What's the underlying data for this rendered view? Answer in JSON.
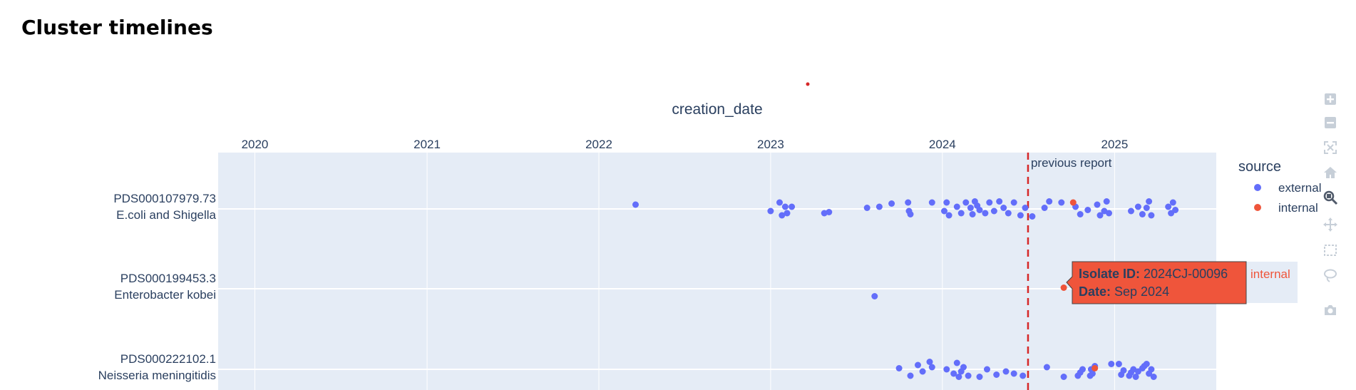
{
  "page": {
    "title": "Cluster timelines"
  },
  "chart_data": {
    "type": "scatter",
    "xlabel": "creation_date",
    "x_axis_side": "top",
    "xlim": [
      "2019-10-15",
      "2025-08-05"
    ],
    "x_ticks": [
      {
        "date": "2020-01-01",
        "label": "2020"
      },
      {
        "date": "2021-01-01",
        "label": "2021"
      },
      {
        "date": "2022-01-01",
        "label": "2022"
      },
      {
        "date": "2023-01-01",
        "label": "2023"
      },
      {
        "date": "2024-01-01",
        "label": "2024"
      },
      {
        "date": "2025-01-01",
        "label": "2025"
      }
    ],
    "categories": [
      {
        "id": "PDS000107979.73",
        "name": "E.coli and Shigella"
      },
      {
        "id": "PDS000199453.3",
        "name": "Enterobacter kobei"
      },
      {
        "id": "PDS000222102.1",
        "name": "Neisseria meningitidis"
      }
    ],
    "legend": {
      "title": "source",
      "placement": "right-top"
    },
    "colors": {
      "external": "#636efa",
      "internal": "#ef553b",
      "plot_bg": "#e5ecf6",
      "grid": "#ffffff",
      "report_line": "#d62728"
    },
    "annotations": [
      {
        "type": "vertical-line",
        "date": "2024-07-01",
        "label": "previous report",
        "style": "dashed"
      }
    ],
    "series": [
      {
        "name": "external",
        "points": [
          {
            "x": "2022-03-20",
            "c": 0,
            "j": 0.2
          },
          {
            "x": "2023-01-01",
            "c": 0,
            "j": -0.1
          },
          {
            "x": "2023-01-20",
            "c": 0,
            "j": 0.3
          },
          {
            "x": "2023-01-25",
            "c": 0,
            "j": -0.3
          },
          {
            "x": "2023-02-01",
            "c": 0,
            "j": 0.1
          },
          {
            "x": "2023-02-05",
            "c": 0,
            "j": -0.2
          },
          {
            "x": "2023-02-15",
            "c": 0,
            "j": 0.1
          },
          {
            "x": "2023-04-25",
            "c": 0,
            "j": -0.2
          },
          {
            "x": "2023-05-05",
            "c": 0,
            "j": -0.15
          },
          {
            "x": "2023-07-25",
            "c": 0,
            "j": 0.05
          },
          {
            "x": "2023-08-20",
            "c": 0,
            "j": 0.1
          },
          {
            "x": "2023-09-15",
            "c": 0,
            "j": 0.25
          },
          {
            "x": "2023-10-20",
            "c": 0,
            "j": 0.3
          },
          {
            "x": "2023-10-22",
            "c": 0,
            "j": -0.1
          },
          {
            "x": "2023-10-25",
            "c": 0,
            "j": -0.25
          },
          {
            "x": "2023-12-10",
            "c": 0,
            "j": 0.3
          },
          {
            "x": "2024-01-05",
            "c": 0,
            "j": -0.1
          },
          {
            "x": "2024-01-10",
            "c": 0,
            "j": 0.3
          },
          {
            "x": "2024-01-15",
            "c": 0,
            "j": -0.3
          },
          {
            "x": "2024-02-01",
            "c": 0,
            "j": 0.1
          },
          {
            "x": "2024-02-10",
            "c": 0,
            "j": -0.2
          },
          {
            "x": "2024-02-20",
            "c": 0,
            "j": 0.3
          },
          {
            "x": "2024-03-01",
            "c": 0,
            "j": 0.05
          },
          {
            "x": "2024-03-05",
            "c": 0,
            "j": -0.25
          },
          {
            "x": "2024-03-10",
            "c": 0,
            "j": 0.35
          },
          {
            "x": "2024-03-15",
            "c": 0,
            "j": 0.15
          },
          {
            "x": "2024-03-20",
            "c": 0,
            "j": -0.05
          },
          {
            "x": "2024-04-01",
            "c": 0,
            "j": -0.2
          },
          {
            "x": "2024-04-10",
            "c": 0,
            "j": 0.3
          },
          {
            "x": "2024-04-20",
            "c": 0,
            "j": -0.1
          },
          {
            "x": "2024-05-01",
            "c": 0,
            "j": 0.35
          },
          {
            "x": "2024-05-10",
            "c": 0,
            "j": 0.05
          },
          {
            "x": "2024-05-20",
            "c": 0,
            "j": -0.2
          },
          {
            "x": "2024-06-01",
            "c": 0,
            "j": 0.3
          },
          {
            "x": "2024-06-15",
            "c": 0,
            "j": -0.3
          },
          {
            "x": "2024-06-25",
            "c": 0,
            "j": 0.05
          },
          {
            "x": "2024-07-10",
            "c": 0,
            "j": -0.35
          },
          {
            "x": "2024-08-05",
            "c": 0,
            "j": 0.05
          },
          {
            "x": "2024-08-15",
            "c": 0,
            "j": 0.35
          },
          {
            "x": "2024-09-10",
            "c": 0,
            "j": 0.3
          },
          {
            "x": "2024-10-10",
            "c": 0,
            "j": 0.1
          },
          {
            "x": "2024-10-20",
            "c": 0,
            "j": -0.25
          },
          {
            "x": "2024-11-05",
            "c": 0,
            "j": -0.05
          },
          {
            "x": "2024-11-25",
            "c": 0,
            "j": 0.2
          },
          {
            "x": "2024-12-01",
            "c": 0,
            "j": -0.3
          },
          {
            "x": "2024-12-10",
            "c": 0,
            "j": -0.1
          },
          {
            "x": "2024-12-15",
            "c": 0,
            "j": 0.35
          },
          {
            "x": "2024-12-20",
            "c": 0,
            "j": -0.2
          },
          {
            "x": "2025-02-05",
            "c": 0,
            "j": -0.1
          },
          {
            "x": "2025-02-20",
            "c": 0,
            "j": 0.1
          },
          {
            "x": "2025-03-01",
            "c": 0,
            "j": -0.25
          },
          {
            "x": "2025-03-10",
            "c": 0,
            "j": 0.05
          },
          {
            "x": "2025-03-15",
            "c": 0,
            "j": 0.35
          },
          {
            "x": "2025-03-20",
            "c": 0,
            "j": -0.3
          },
          {
            "x": "2025-04-25",
            "c": 0,
            "j": 0.1
          },
          {
            "x": "2025-05-01",
            "c": 0,
            "j": -0.2
          },
          {
            "x": "2025-05-05",
            "c": 0,
            "j": 0.3
          },
          {
            "x": "2025-05-10",
            "c": 0,
            "j": -0.05
          },
          {
            "x": "2023-08-10",
            "c": 1,
            "j": -0.35
          },
          {
            "x": "2023-10-01",
            "c": 2,
            "j": 0.05
          },
          {
            "x": "2023-10-25",
            "c": 2,
            "j": -0.3
          },
          {
            "x": "2023-11-10",
            "c": 2,
            "j": 0.2
          },
          {
            "x": "2023-11-20",
            "c": 2,
            "j": -0.1
          },
          {
            "x": "2023-12-05",
            "c": 2,
            "j": 0.35
          },
          {
            "x": "2023-12-10",
            "c": 2,
            "j": 0.1
          },
          {
            "x": "2024-01-10",
            "c": 2,
            "j": 0.0
          },
          {
            "x": "2024-01-25",
            "c": 2,
            "j": -0.2
          },
          {
            "x": "2024-02-01",
            "c": 2,
            "j": 0.3
          },
          {
            "x": "2024-02-05",
            "c": 2,
            "j": -0.35
          },
          {
            "x": "2024-02-10",
            "c": 2,
            "j": -0.1
          },
          {
            "x": "2024-02-15",
            "c": 2,
            "j": 0.1
          },
          {
            "x": "2024-02-25",
            "c": 2,
            "j": -0.3
          },
          {
            "x": "2024-03-20",
            "c": 2,
            "j": -0.35
          },
          {
            "x": "2024-04-05",
            "c": 2,
            "j": 0.0
          },
          {
            "x": "2024-04-25",
            "c": 2,
            "j": -0.25
          },
          {
            "x": "2024-05-15",
            "c": 2,
            "j": -0.1
          },
          {
            "x": "2024-06-01",
            "c": 2,
            "j": -0.2
          },
          {
            "x": "2024-06-20",
            "c": 2,
            "j": -0.3
          },
          {
            "x": "2024-08-10",
            "c": 2,
            "j": 0.1
          },
          {
            "x": "2024-09-15",
            "c": 2,
            "j": -0.35
          },
          {
            "x": "2024-10-15",
            "c": 2,
            "j": -0.3
          },
          {
            "x": "2024-10-20",
            "c": 2,
            "j": -0.15
          },
          {
            "x": "2024-10-25",
            "c": 2,
            "j": 0.0
          },
          {
            "x": "2024-11-10",
            "c": 2,
            "j": -0.3
          },
          {
            "x": "2024-11-12",
            "c": 2,
            "j": 0.0
          },
          {
            "x": "2024-11-15",
            "c": 2,
            "j": -0.2
          },
          {
            "x": "2024-11-20",
            "c": 2,
            "j": 0.15
          },
          {
            "x": "2024-12-25",
            "c": 2,
            "j": 0.25
          },
          {
            "x": "2025-01-10",
            "c": 2,
            "j": 0.25
          },
          {
            "x": "2025-01-15",
            "c": 2,
            "j": -0.25
          },
          {
            "x": "2025-01-20",
            "c": 2,
            "j": -0.05
          },
          {
            "x": "2025-02-01",
            "c": 2,
            "j": -0.3
          },
          {
            "x": "2025-02-05",
            "c": 2,
            "j": -0.15
          },
          {
            "x": "2025-02-10",
            "c": 2,
            "j": 0.0
          },
          {
            "x": "2025-02-15",
            "c": 2,
            "j": -0.35
          },
          {
            "x": "2025-02-20",
            "c": 2,
            "j": -0.1
          },
          {
            "x": "2025-03-01",
            "c": 2,
            "j": 0.05
          },
          {
            "x": "2025-03-05",
            "c": 2,
            "j": 0.15
          },
          {
            "x": "2025-03-10",
            "c": 2,
            "j": 0.25
          },
          {
            "x": "2025-03-15",
            "c": 2,
            "j": -0.2
          },
          {
            "x": "2025-03-20",
            "c": 2,
            "j": 0.0
          },
          {
            "x": "2025-03-25",
            "c": 2,
            "j": -0.35
          }
        ]
      },
      {
        "name": "internal",
        "points": [
          {
            "x": "2024-10-05",
            "c": 0,
            "j": 0.3
          },
          {
            "x": "2024-09-15",
            "c": 1,
            "j": 0.05
          },
          {
            "x": "2024-11-20",
            "c": 2,
            "j": 0.05
          }
        ]
      }
    ],
    "hover": {
      "isolate_label": "Isolate ID:",
      "isolate_value": "2024CJ-00096",
      "date_label": "Date:",
      "date_value": "Sep 2024",
      "trace_name": "internal"
    }
  },
  "modebar": {
    "buttons": [
      {
        "name": "zoom-in-icon"
      },
      {
        "name": "zoom-out-icon"
      },
      {
        "name": "autoscale-icon"
      },
      {
        "name": "home-icon"
      },
      {
        "name": "zoom-icon",
        "active": true
      },
      {
        "name": "pan-icon"
      },
      {
        "name": "box-select-icon"
      },
      {
        "name": "lasso-select-icon"
      },
      {
        "name": "camera-icon"
      }
    ]
  }
}
